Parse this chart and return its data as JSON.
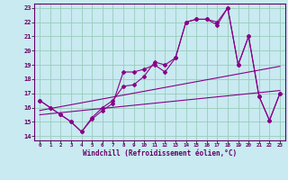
{
  "bg_color": "#c8eaf0",
  "grid_color": "#99ccbb",
  "line_color": "#880088",
  "xlabel": "Windchill (Refroidissement éolien,°C)",
  "xlim": [
    -0.5,
    23.5
  ],
  "ylim": [
    13.7,
    23.3
  ],
  "xticks": [
    0,
    1,
    2,
    3,
    4,
    5,
    6,
    7,
    8,
    9,
    10,
    11,
    12,
    13,
    14,
    15,
    16,
    17,
    18,
    19,
    20,
    21,
    22,
    23
  ],
  "yticks": [
    14,
    15,
    16,
    17,
    18,
    19,
    20,
    21,
    22,
    23
  ],
  "line1_x": [
    0,
    1,
    2,
    3,
    4,
    5,
    6,
    7,
    8,
    9,
    10,
    11,
    12,
    13,
    14,
    15,
    16,
    17,
    18,
    19,
    20,
    21,
    22,
    23
  ],
  "line1_y": [
    16.5,
    16.0,
    15.5,
    15.0,
    14.3,
    15.2,
    15.8,
    16.3,
    18.5,
    18.5,
    18.7,
    19.0,
    18.5,
    19.5,
    22.0,
    22.2,
    22.2,
    21.8,
    23.0,
    19.0,
    21.0,
    16.8,
    15.1,
    17.0
  ],
  "line2_x": [
    0,
    1,
    2,
    3,
    4,
    5,
    6,
    7,
    8,
    9,
    10,
    11,
    12,
    13,
    14,
    15,
    16,
    17,
    18,
    19,
    20,
    21,
    22,
    23
  ],
  "line2_y": [
    16.5,
    16.0,
    15.5,
    15.0,
    14.3,
    15.3,
    16.0,
    16.5,
    17.5,
    17.6,
    18.2,
    19.2,
    19.0,
    19.5,
    22.0,
    22.2,
    22.2,
    22.0,
    23.0,
    19.0,
    21.0,
    16.8,
    15.1,
    17.0
  ],
  "trend1_x": [
    0,
    23
  ],
  "trend1_y": [
    15.8,
    18.9
  ],
  "trend2_x": [
    0,
    23
  ],
  "trend2_y": [
    15.5,
    17.2
  ]
}
